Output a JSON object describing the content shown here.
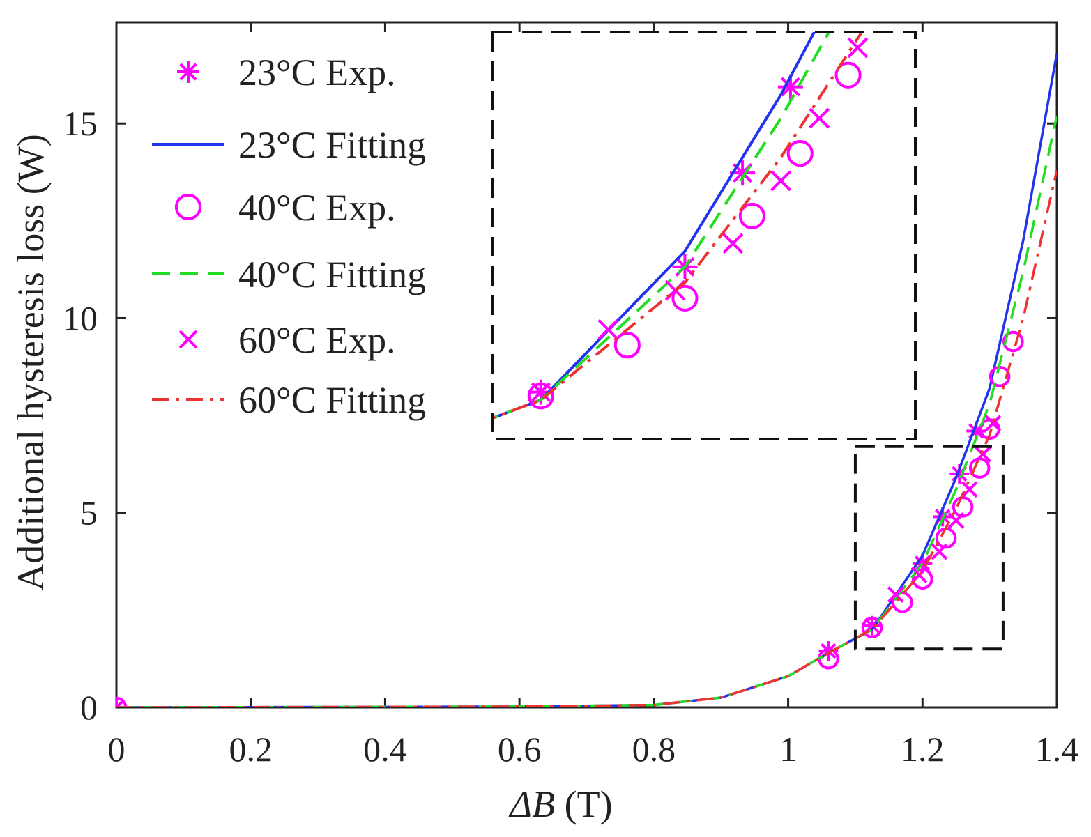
{
  "chart_data": {
    "type": "line",
    "title": "",
    "xlabel_symbol": "ΔB",
    "xlabel_unit": " (T)",
    "ylabel": "Additional hysteresis loss (W)",
    "xlim": [
      0,
      1.4
    ],
    "ylim": [
      0,
      17.6
    ],
    "xticks": [
      0,
      0.2,
      0.4,
      0.6,
      0.8,
      1,
      1.2,
      1.4
    ],
    "xtick_labels": [
      "0",
      "0.2",
      "0.4",
      "0.6",
      "0.8",
      "1",
      "1.2",
      "1.4"
    ],
    "yticks": [
      0,
      5,
      10,
      15
    ],
    "ytick_labels": [
      "0",
      "5",
      "10",
      "15"
    ],
    "grid": false,
    "legend_position": "top-left",
    "inset": {
      "description": "zoomed view of highlighted region",
      "region_x": [
        1.1,
        1.32
      ],
      "region_y": [
        1.5,
        6.7
      ]
    },
    "series": [
      {
        "name": "23°C Exp.",
        "kind": "markers",
        "marker": "star",
        "color": "#ff00ff",
        "x": [
          0,
          1.06,
          1.125,
          1.2,
          1.23,
          1.255,
          1.28
        ],
        "y": [
          0,
          1.45,
          2.1,
          3.7,
          4.9,
          6.0,
          7.1
        ]
      },
      {
        "name": "23°C Fitting",
        "kind": "line",
        "dash": "solid",
        "color": "#2233ee",
        "x": [
          0,
          0.2,
          0.4,
          0.6,
          0.8,
          0.9,
          1.0,
          1.06,
          1.125,
          1.2,
          1.25,
          1.3,
          1.35,
          1.4
        ],
        "y": [
          0,
          0.005,
          0.01,
          0.02,
          0.06,
          0.25,
          0.8,
          1.4,
          2.0,
          3.9,
          5.9,
          8.2,
          12.0,
          16.8
        ]
      },
      {
        "name": "40°C Exp.",
        "kind": "markers",
        "marker": "circle",
        "color": "#ff00ff",
        "x": [
          0,
          1.06,
          1.125,
          1.17,
          1.2,
          1.235,
          1.26,
          1.285,
          1.3,
          1.315,
          1.335
        ],
        "y": [
          0,
          1.25,
          2.05,
          2.7,
          3.3,
          4.35,
          5.15,
          6.15,
          7.15,
          8.5,
          9.4
        ]
      },
      {
        "name": "40°C Fitting",
        "kind": "line",
        "dash": "dashed",
        "color": "#22dd22",
        "x": [
          0,
          0.2,
          0.4,
          0.6,
          0.8,
          0.9,
          1.0,
          1.06,
          1.125,
          1.2,
          1.25,
          1.3,
          1.35,
          1.4
        ],
        "y": [
          0,
          0.005,
          0.01,
          0.02,
          0.06,
          0.25,
          0.8,
          1.4,
          2.0,
          3.7,
          5.6,
          7.8,
          11.2,
          15.2
        ]
      },
      {
        "name": "60°C Exp.",
        "kind": "markers",
        "marker": "x",
        "color": "#ff00ff",
        "x": [
          0,
          1.16,
          1.195,
          1.225,
          1.25,
          1.27,
          1.29,
          1.305
        ],
        "y": [
          0,
          2.9,
          3.4,
          4.0,
          4.8,
          5.6,
          6.5,
          7.3
        ]
      },
      {
        "name": "60°C Fitting",
        "kind": "line",
        "dash": "dashdot",
        "color": "#ee3333",
        "x": [
          0,
          0.2,
          0.4,
          0.6,
          0.8,
          0.9,
          1.0,
          1.06,
          1.125,
          1.2,
          1.25,
          1.3,
          1.35,
          1.4
        ],
        "y": [
          0,
          0.005,
          0.01,
          0.02,
          0.06,
          0.25,
          0.8,
          1.4,
          2.0,
          3.5,
          5.1,
          7.0,
          10.0,
          13.8
        ]
      }
    ]
  }
}
